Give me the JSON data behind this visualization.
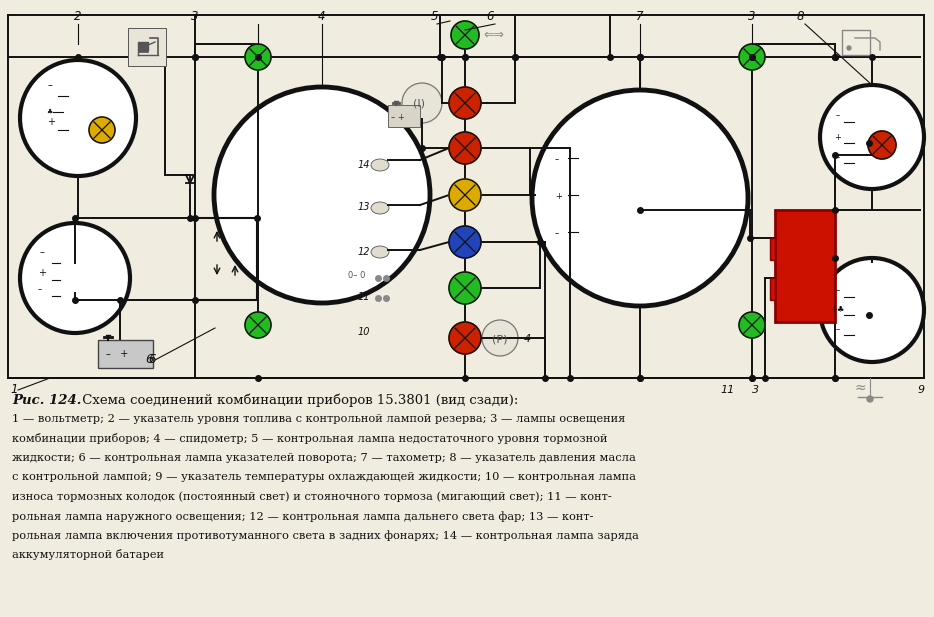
{
  "bg_color": "#f0ece0",
  "lamp_green": "#22bb22",
  "lamp_red": "#cc2200",
  "lamp_yellow": "#ddaa00",
  "lamp_blue": "#2244bb",
  "lc": "#111111",
  "red_rect": "#cc1100",
  "caption_lines": [
    "1 — вольтметр; 2 — указатель уровня топлива с контрольной лампой резерва; 3 — лампы освещения",
    "комбинации приборов; 4 — спидометр; 5 — контрольная лампа недостаточного уровня тормозной",
    "жидкости; 6 — контрольная лампа указателей поворота; 7 — тахометр; 8 — указатель давления масла",
    "с контрольной лампой; 9 — указатель температуры охлаждающей жидкости; 10 — контрольная лампа",
    "износа тормозных колодок (постоянный свет) и стояночного тормоза (мигающий свет); 11 — конт-",
    "рольная лампа наружного освещения; 12 — контрольная лампа дальнего света фар; 13 — конт-",
    "рольная лампа включения противотуманного света в задних фонарях; 14 — контрольная лампа заряда",
    "аккумуляторной батареи"
  ]
}
